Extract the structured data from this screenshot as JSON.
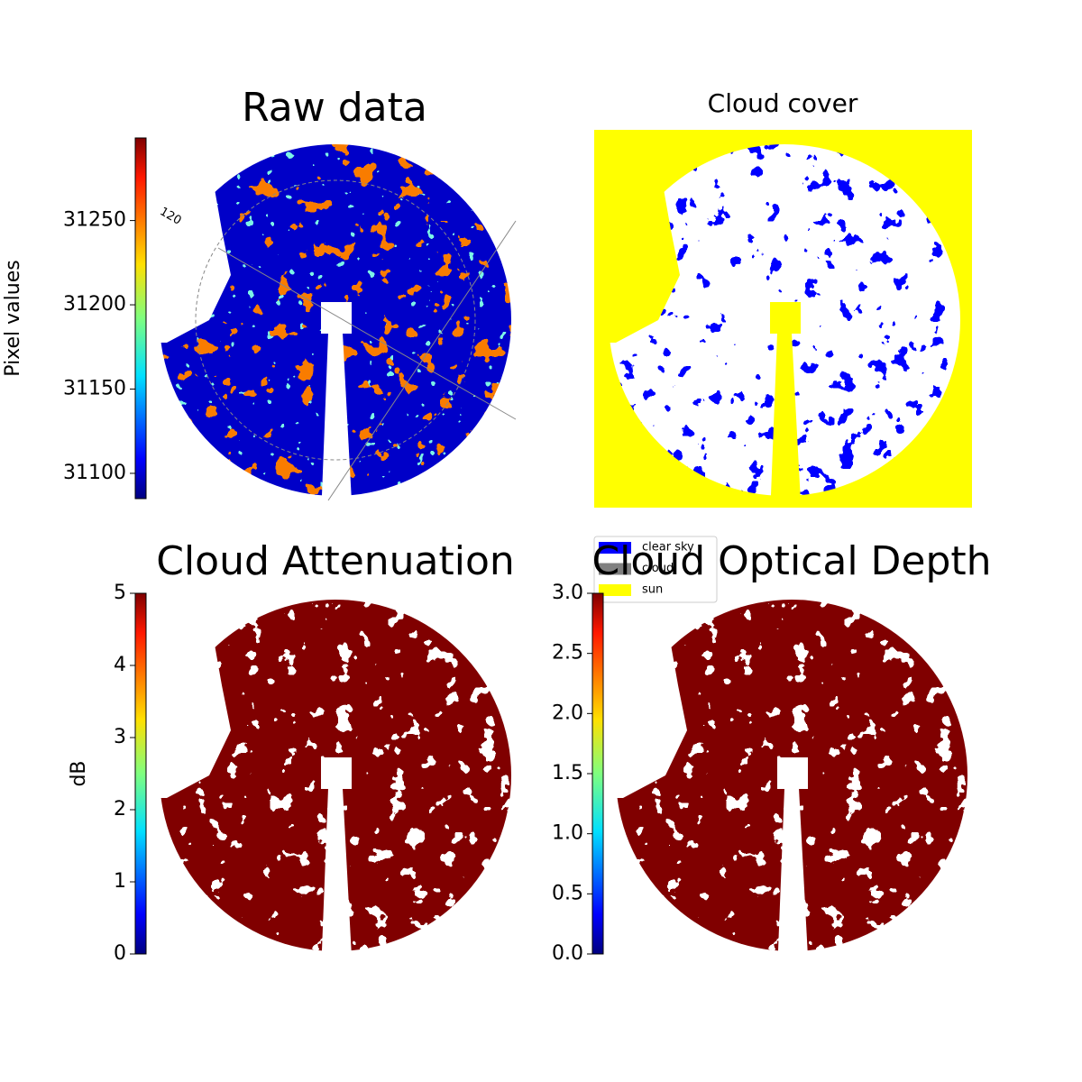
{
  "chart_data": [
    {
      "type": "image",
      "title": "Raw data",
      "annotation": "120",
      "colorbar": {
        "label": "Pixel values",
        "ylim": [
          31085,
          31299
        ],
        "yticks": [
          31100,
          31150,
          31200,
          31250
        ]
      }
    },
    {
      "type": "image",
      "title": "Cloud cover",
      "legend": [
        {
          "name": "clear sky",
          "color": "#0000ff"
        },
        {
          "name": "cloud",
          "color": "#808080"
        },
        {
          "name": "sun",
          "color": "#ffff00"
        }
      ]
    },
    {
      "type": "image",
      "title": "Cloud Attenuation",
      "colorbar": {
        "label": "dB",
        "ylim": [
          0,
          5
        ],
        "yticks": [
          0,
          1,
          2,
          3,
          4,
          5
        ]
      }
    },
    {
      "type": "image",
      "title": "Cloud Optical Depth",
      "colorbar": {
        "ylim": [
          0,
          3
        ],
        "yticks": [
          {
            "value": 0,
            "label": "0.0"
          },
          {
            "value": 0.5,
            "label": "0.5"
          },
          {
            "value": 1,
            "label": "1.0"
          },
          {
            "value": 1.5,
            "label": "1.5"
          },
          {
            "value": 2,
            "label": "2.0"
          },
          {
            "value": 2.5,
            "label": "2.5"
          },
          {
            "value": 3,
            "label": "3.0"
          }
        ]
      }
    }
  ]
}
